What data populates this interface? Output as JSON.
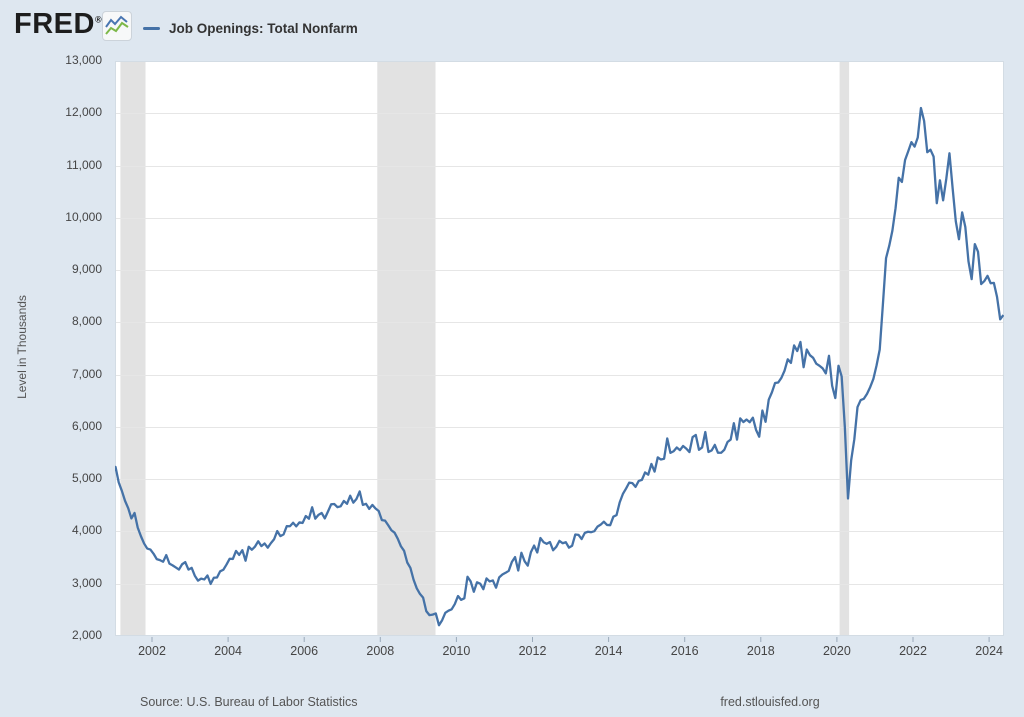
{
  "header": {
    "logo_text": "FRED",
    "logo_reg": "®",
    "legend_label": "Job Openings: Total Nonfarm"
  },
  "footer": {
    "source": "Source: U.S. Bureau of Labor Statistics",
    "site": "fred.stlouisfed.org"
  },
  "colors": {
    "line": "#4572a7",
    "recession_band": "#e2e2e2",
    "gridline": "#e6e6e6",
    "plot_border": "#d3dce4",
    "tick_mark": "#9aaaba",
    "background": "#dee7f0",
    "logo_icon_blue": "#4a76b2",
    "logo_icon_green": "#7db849"
  },
  "chart_data": {
    "type": "line",
    "title": "Job Openings: Total Nonfarm",
    "ylabel": "Level in Thousands",
    "units": "thousands",
    "frequency": "monthly",
    "start": "2000-12",
    "end": "2024-05",
    "ylim": [
      2000,
      13000
    ],
    "xlim": [
      2000.9,
      2024.4
    ],
    "grid": "horizontal-only",
    "legend_position": "top-left",
    "y_tick_values": [
      2000,
      3000,
      4000,
      5000,
      6000,
      7000,
      8000,
      9000,
      10000,
      11000,
      12000,
      13000
    ],
    "y_tick_labels": [
      "2,000",
      "3,000",
      "4,000",
      "5,000",
      "6,000",
      "7,000",
      "8,000",
      "9,000",
      "10,000",
      "11,000",
      "12,000",
      "13,000"
    ],
    "x_tick_values": [
      2002,
      2004,
      2006,
      2008,
      2010,
      2012,
      2014,
      2016,
      2018,
      2020,
      2022,
      2024
    ],
    "x_tick_labels": [
      "2002",
      "2004",
      "2006",
      "2008",
      "2010",
      "2012",
      "2014",
      "2016",
      "2018",
      "2020",
      "2022",
      "2024"
    ],
    "recession_bands": [
      [
        2001.17,
        2001.83
      ],
      [
        2007.92,
        2009.45
      ],
      [
        2020.07,
        2020.32
      ]
    ],
    "values": [
      5088,
      5234,
      4939,
      4775,
      4585,
      4445,
      4249,
      4353,
      4074,
      3911,
      3771,
      3673,
      3653,
      3573,
      3471,
      3451,
      3421,
      3547,
      3384,
      3351,
      3311,
      3271,
      3373,
      3413,
      3270,
      3304,
      3153,
      3059,
      3097,
      3082,
      3158,
      2997,
      3115,
      3119,
      3238,
      3268,
      3367,
      3478,
      3474,
      3627,
      3551,
      3642,
      3440,
      3707,
      3650,
      3712,
      3812,
      3720,
      3770,
      3690,
      3777,
      3851,
      4007,
      3911,
      3944,
      4101,
      4099,
      4167,
      4098,
      4173,
      4163,
      4295,
      4244,
      4463,
      4245,
      4318,
      4354,
      4250,
      4381,
      4519,
      4525,
      4464,
      4482,
      4583,
      4529,
      4683,
      4550,
      4624,
      4766,
      4508,
      4529,
      4432,
      4507,
      4439,
      4391,
      4217,
      4208,
      4118,
      4023,
      3976,
      3862,
      3717,
      3630,
      3406,
      3302,
      3076,
      2912,
      2805,
      2735,
      2476,
      2399,
      2409,
      2432,
      2206,
      2302,
      2443,
      2484,
      2511,
      2611,
      2765,
      2692,
      2721,
      3133,
      3044,
      2847,
      3028,
      3002,
      2895,
      3102,
      3044,
      3063,
      2924,
      3122,
      3176,
      3209,
      3247,
      3419,
      3509,
      3253,
      3592,
      3432,
      3346,
      3604,
      3730,
      3598,
      3874,
      3794,
      3764,
      3797,
      3640,
      3706,
      3820,
      3775,
      3794,
      3691,
      3727,
      3942,
      3935,
      3855,
      3973,
      3994,
      3986,
      4005,
      4092,
      4130,
      4187,
      4125,
      4120,
      4282,
      4312,
      4556,
      4717,
      4821,
      4934,
      4924,
      4853,
      4967,
      4987,
      5128,
      5086,
      5292,
      5145,
      5417,
      5376,
      5391,
      5779,
      5504,
      5535,
      5607,
      5555,
      5635,
      5584,
      5519,
      5806,
      5845,
      5562,
      5608,
      5902,
      5521,
      5549,
      5656,
      5505,
      5505,
      5563,
      5711,
      5758,
      6071,
      5757,
      6163,
      6093,
      6141,
      6090,
      6177,
      5944,
      5812,
      6313,
      6098,
      6520,
      6661,
      6840,
      6850,
      6939,
      7077,
      7293,
      7225,
      7559,
      7452,
      7625,
      7142,
      7480,
      7372,
      7322,
      7209,
      7170,
      7121,
      7024,
      7361,
      6787,
      6552,
      7170,
      6966,
      6002,
      4631,
      5361,
      5766,
      6380,
      6514,
      6538,
      6632,
      6762,
      6917,
      7175,
      7478,
      8341,
      9229,
      9464,
      9755,
      10185,
      10767,
      10687,
      11106,
      11274,
      11448,
      11362,
      11537,
      12100,
      11855,
      11254,
      11303,
      11170,
      10280,
      10717,
      10334,
      10746,
      11234,
      10563,
      9931,
      9590,
      10103,
      9824,
      9165,
      8827,
      9497,
      9353,
      8733,
      8790,
      8889,
      8748,
      8756,
      8488,
      8059,
      8140
    ]
  }
}
